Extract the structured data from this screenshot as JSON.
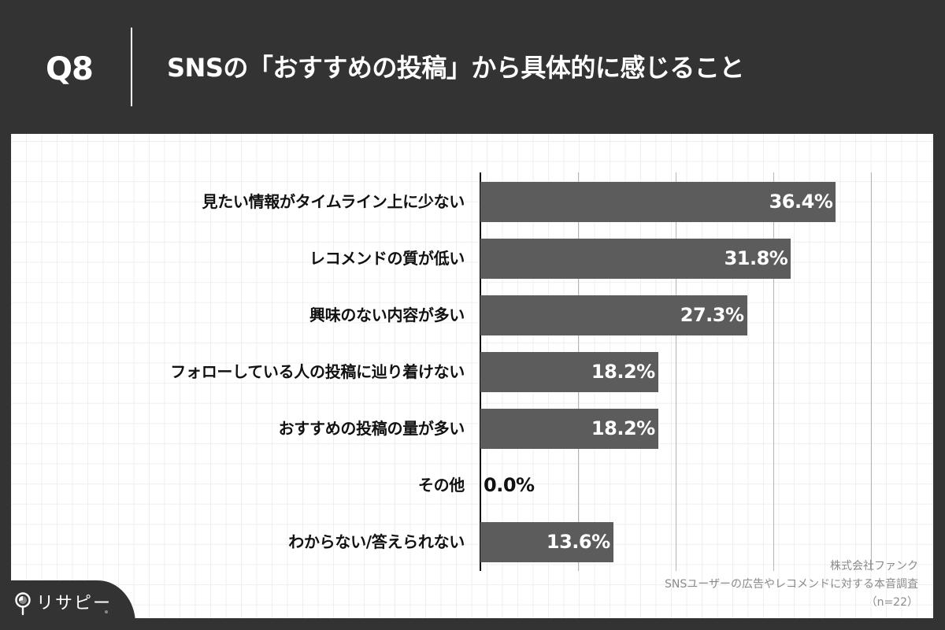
{
  "header": {
    "question_number": "Q8",
    "title": "SNSの「おすすめの投稿」から具体的に感じること"
  },
  "colors": {
    "background": "#333333",
    "panel": "#ffffff",
    "bar": "#5c5c5c",
    "label_text": "#111111",
    "value_text_inside": "#ffffff",
    "source_text": "#8a8a8a",
    "gridline": "#b5b5b5"
  },
  "chart_data": {
    "type": "bar",
    "orientation": "horizontal",
    "title": "SNSの「おすすめの投稿」から具体的に感じること",
    "categories": [
      "見たい情報がタイムライン上に少ない",
      "レコメンドの質が低い",
      "興味のない内容が多い",
      "フォローしている人の投稿に辿り着けない",
      "おすすめの投稿の量が多い",
      "その他",
      "わからない/答えられない"
    ],
    "values": [
      36.4,
      31.8,
      27.3,
      18.2,
      18.2,
      0.0,
      13.6
    ],
    "value_labels": [
      "36.4%",
      "31.8%",
      "27.3%",
      "18.2%",
      "18.2%",
      "0.0%",
      "13.6%"
    ],
    "unit": "%",
    "xlabel": "",
    "ylabel": "",
    "xlim": [
      0,
      40
    ],
    "gridlines_at": [
      10,
      20,
      30,
      40
    ],
    "grid": true,
    "legend": null
  },
  "source": {
    "company": "株式会社ファンク",
    "survey": "SNSユーザーの広告やレコメンドに対する本音調査",
    "sample": "（n=22）"
  },
  "logo": {
    "text": "リサピー",
    "icon": "map-pin-pie-icon"
  }
}
